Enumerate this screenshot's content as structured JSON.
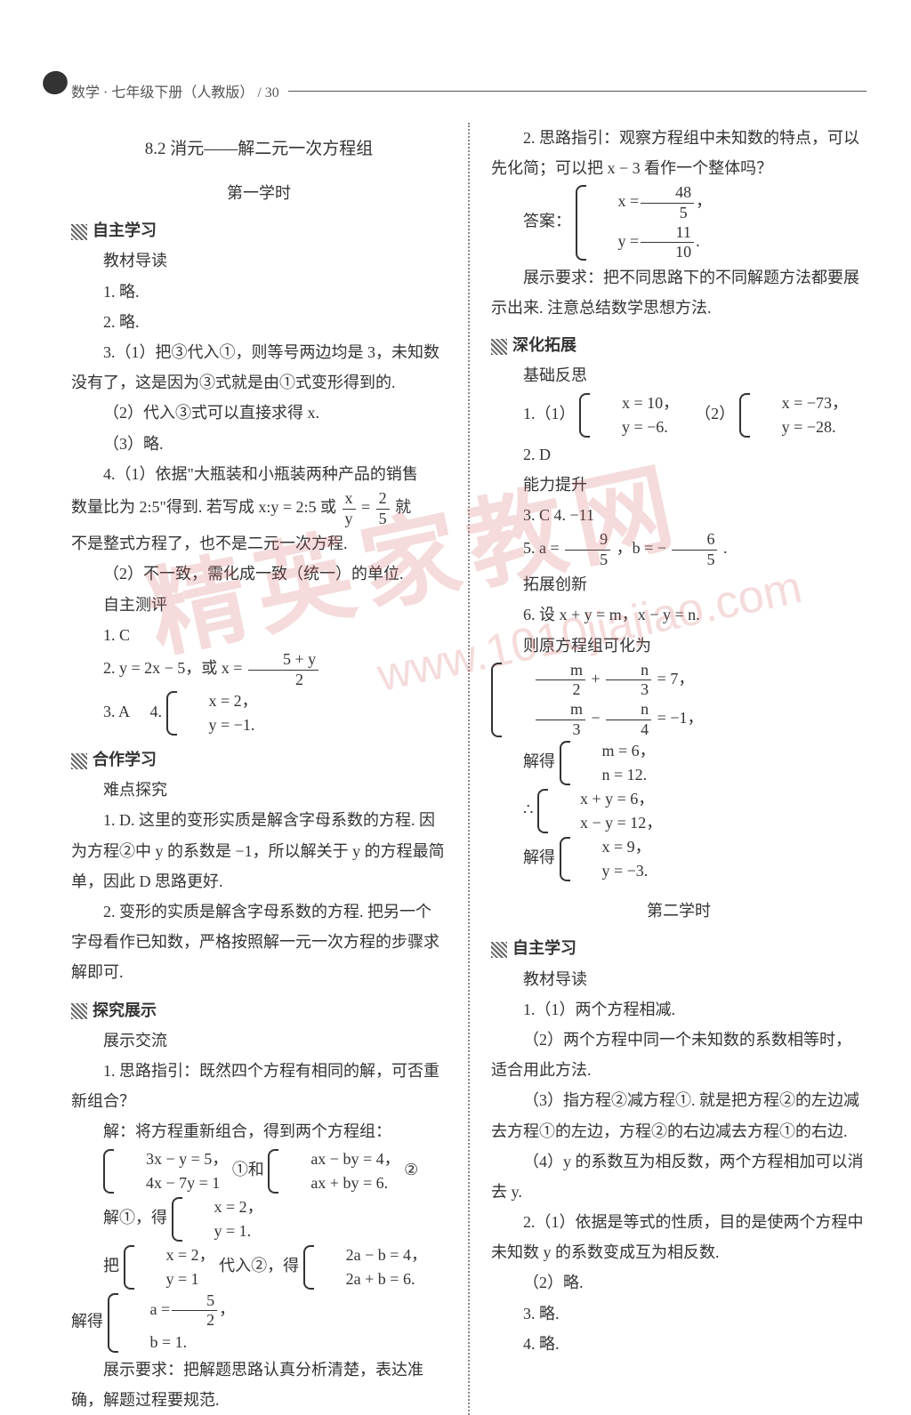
{
  "header": {
    "text": "数学 · 七年级下册（人教版）  /  30"
  },
  "watermark": {
    "main": "精英家教网",
    "url": "www.1010jiajiao.com"
  },
  "left": {
    "title": "8.2  消元——解二元一次方程组",
    "lesson1": "第一学时",
    "s_zizhu": "自主学习",
    "jiaocai": "教材导读",
    "l1": "1. 略.",
    "l2": "2. 略.",
    "l3a": "3.（1）把③代入①，则等号两边均是 3，未知数没有了，这是因为③式就是由①式变形得到的.",
    "l3b": "（2）代入③式可以直接求得 x.",
    "l3c": "（3）略.",
    "l4a": "4.（1）依据\"大瓶装和小瓶装两种产品的销售",
    "l4b_pre": "数量比为 2:5\"得到. 若写成 x:y = 2:5 或",
    "l4b_post": "就",
    "l4c": "不是整式方程了，也不是二元一次方程.",
    "l4d": "（2）不一致，需化成一致（统一）的单位.",
    "zice": "自主测评",
    "zc1": "1. C",
    "zc2_pre": "2. y = 2x − 5，或 x =",
    "zc3a": "3. A",
    "zc3b": "4.",
    "zc4_1": "x = 2，",
    "zc4_2": "y = −1.",
    "s_hezuo": "合作学习",
    "nandian": "难点探究",
    "hz1": "1. D. 这里的变形实质是解含字母系数的方程. 因为方程②中 y 的系数是 −1，所以解关于 y 的方程最简单，因此 D 思路更好.",
    "hz2": "2. 变形的实质是解含字母系数的方程. 把另一个字母看作已知数，严格按照解一元一次方程的步骤求解即可.",
    "s_tanjiu": "探究展示",
    "zhanshi": "展示交流",
    "tj1": "1. 思路指引：既然四个方程有相同的解，可否重新组合？",
    "tj2": "解：将方程重新组合，得到两个方程组：",
    "sys1_1": "3x − y = 5，",
    "sys1_2": "4x − 7y = 1",
    "sys1_mid": "①和",
    "sys2_1": "ax − by = 4，",
    "sys2_2": "ax + by = 6.",
    "sys2_after": "②",
    "tj3_pre": "解①，得",
    "sys3_1": "x = 2，",
    "sys3_2": "y = 1.",
    "tj4_pre": "把",
    "sys4_1": "x = 2，",
    "sys4_2": "y = 1",
    "tj4_mid": "代入②，得",
    "sys5_1": "2a − b = 4，",
    "sys5_2": "2a + b = 6.",
    "tj4_mid2": "解得",
    "sys6_1_pre": "a =",
    "sys6_2": "b = 1.",
    "tj5": "展示要求：把解题思路认真分析清楚，表达准确，解题过程要规范."
  },
  "right": {
    "r1": "2. 思路指引：观察方程组中未知数的特点，可以先化简；可以把 x − 3 看作一个整体吗？",
    "ans_label": "答案：",
    "ans1_pre": "x =",
    "ans2_pre": "y =",
    "r2": "展示要求：把不同思路下的不同解题方法都要展示出来. 注意总结数学思想方法.",
    "s_shenhua": "深化拓展",
    "jichu": "基础反思",
    "sh1_label": "1.（1）",
    "sh1a_1": "x = 10，",
    "sh1a_2": "y = −6.",
    "sh1_label2": "（2）",
    "sh1b_1": "x = −73，",
    "sh1b_2": "y = −28.",
    "sh2": "2. D",
    "nengli": "能力提升",
    "sh3": "3. C      4. −11",
    "sh5_pre": "5. a =",
    "sh5_mid": "，b = −",
    "sh5_end": ".",
    "tuozhan": "拓展创新",
    "sh6": "6. 设 x + y = m，x − y = n.",
    "sh6b": "则原方程组可化为",
    "sys7_1_eq": "= 7，",
    "sys7_2_eq": "= −1，",
    "sh6c": "解得",
    "sys8_1": "m = 6，",
    "sys8_2": "n = 12.",
    "sh6d": "∴",
    "sys9_1": "x + y = 6，",
    "sys9_2": "x − y = 12，",
    "sh6e": "解得",
    "sys10_1": "x = 9，",
    "sys10_2": "y = −3.",
    "lesson2": "第二学时",
    "s_zizhu2": "自主学习",
    "jiaocai2": "教材导读",
    "b1": "1.（1）两个方程相减.",
    "b2": "（2）两个方程中同一个未知数的系数相等时，适合用此方法.",
    "b3": "（3）指方程②减方程①. 就是把方程②的左边减去方程①的左边，方程②的右边减去方程①的右边.",
    "b4": "（4）y 的系数互为相反数，两个方程相加可以消去 y.",
    "b5": "2.（1）依据是等式的性质，目的是使两个方程中未知数 y 的系数变成互为相反数.",
    "b6": "（2）略.",
    "b7": "3. 略.",
    "b8": "4. 略."
  },
  "fractions": {
    "f25_n": "x",
    "f25_d": "y",
    "f25b_n": "2",
    "f25b_d": "5",
    "f5y_n": "5 + y",
    "f5y_d": "2",
    "f52_n": "5",
    "f52_d": "2",
    "f485_n": "48",
    "f485_d": "5",
    "f1110_n": "11",
    "f1110_d": "10",
    "f95_n": "9",
    "f95_d": "5",
    "f65_n": "6",
    "f65_d": "5",
    "fm2_n": "m",
    "fm2_d": "2",
    "fn3_n": "n",
    "fn3_d": "3",
    "fm3_n": "m",
    "fm3_d": "3",
    "fn4_n": "n",
    "fn4_d": "4"
  }
}
